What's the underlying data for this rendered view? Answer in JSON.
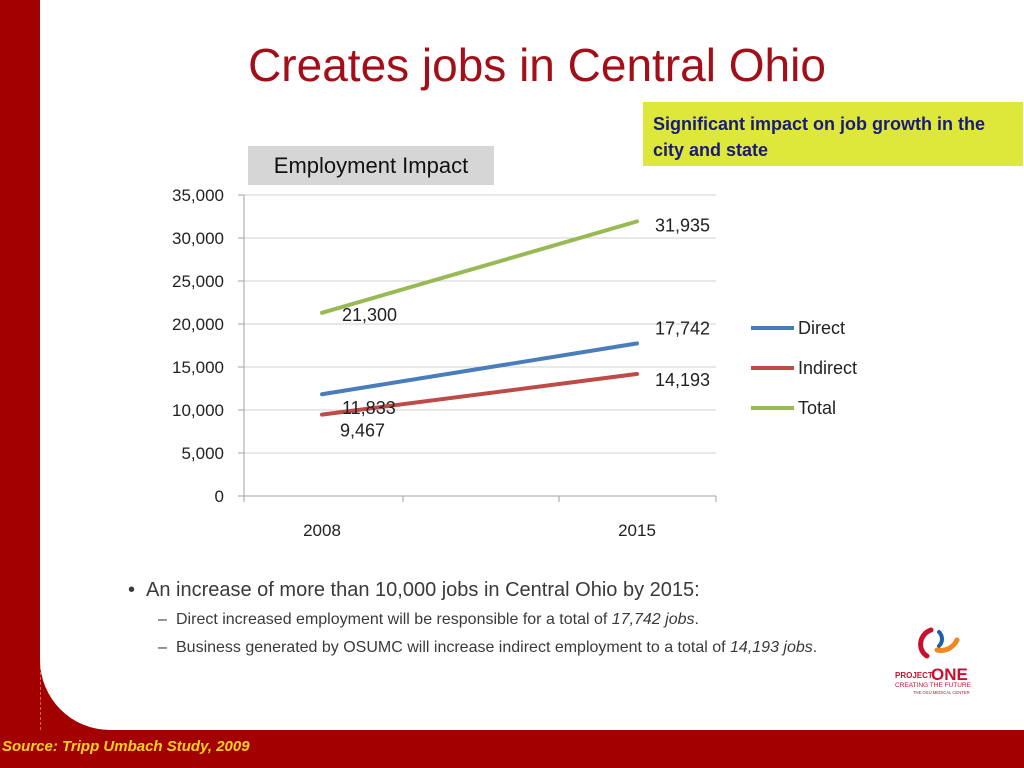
{
  "slide": {
    "title": "Creates jobs in Central Ohio",
    "callout": "Significant impact on job growth in the city and state",
    "chart_title": "Employment Impact",
    "bullet_main": "An increase of more than 10,000 jobs in Central Ohio by 2015:",
    "sub1_text": "Direct increased employment will be  responsible for a total of ",
    "sub1_italic": "17,742 jobs",
    "sub1_end": ".",
    "sub2_text": "Business generated by OSUMC will increase indirect employment to a total of ",
    "sub2_italic": "14,193 jobs",
    "sub2_end": ".",
    "source": "Source: Tripp Umbach Study, 2009",
    "logo_project": "PROJECT",
    "logo_one": "ONE",
    "logo_tagline": "CREATING THE FUTURE",
    "logo_sub": "THE OSU MEDICAL CENTER"
  },
  "colors": {
    "accent": "#a30000",
    "title": "#a30f18",
    "callout_bg": "#dde83a",
    "callout_text": "#1a1a7a",
    "source_text": "#ffd21f"
  },
  "chart_data": {
    "type": "line",
    "title": "Employment Impact",
    "categories": [
      "2008",
      "2015"
    ],
    "series": [
      {
        "name": "Direct",
        "color": "#4a7ebb",
        "values": [
          11833,
          17742
        ],
        "labels": [
          "11,833",
          "17,742"
        ]
      },
      {
        "name": "Indirect",
        "color": "#be4b48",
        "values": [
          9467,
          14193
        ],
        "labels": [
          "9,467",
          "14,193"
        ]
      },
      {
        "name": "Total",
        "color": "#98b954",
        "values": [
          21300,
          31935
        ],
        "labels": [
          "21,300",
          "31,935"
        ]
      }
    ],
    "ylim": [
      0,
      35000
    ],
    "yticks": [
      0,
      5000,
      10000,
      15000,
      20000,
      25000,
      30000,
      35000
    ],
    "ytick_labels": [
      "0",
      "5,000",
      "10,000",
      "15,000",
      "20,000",
      "25,000",
      "30,000",
      "35,000"
    ],
    "grid": true,
    "legend": "right"
  }
}
